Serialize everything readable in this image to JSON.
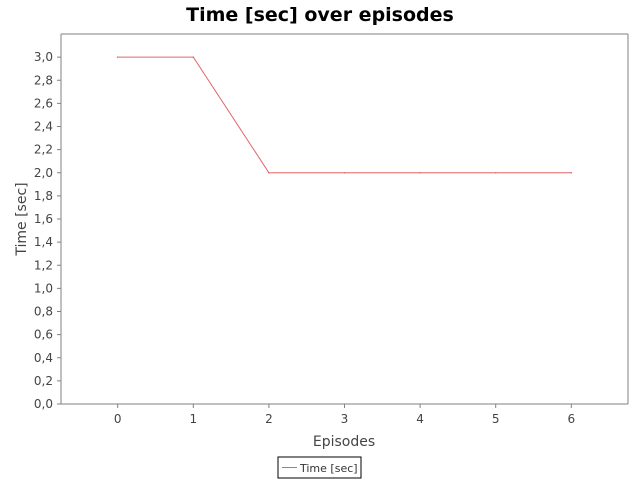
{
  "chart_data": {
    "type": "line",
    "title": "Time [sec] over episodes",
    "xlabel": "Episodes",
    "ylabel": "Time [sec]",
    "x": [
      0,
      1,
      2,
      3,
      4,
      5,
      6
    ],
    "x_ticks": [
      0,
      1,
      2,
      3,
      4,
      5,
      6
    ],
    "x_tick_labels": [
      "0",
      "1",
      "2",
      "3",
      "4",
      "5",
      "6"
    ],
    "xlim": [
      -0.75,
      6.75
    ],
    "ylim": [
      0,
      3.2
    ],
    "y_ticks": [
      0,
      0.2,
      0.4,
      0.6,
      0.8,
      1.0,
      1.2,
      1.4,
      1.6,
      1.8,
      2.0,
      2.2,
      2.4,
      2.6,
      2.8,
      3.0
    ],
    "y_tick_labels": [
      "0,0",
      "0,2",
      "0,4",
      "0,6",
      "0,8",
      "1,0",
      "1,2",
      "1,4",
      "1,6",
      "1,8",
      "2,0",
      "2,2",
      "2,4",
      "2,6",
      "2,8",
      "3,0"
    ],
    "grid": false,
    "legend_position": "bottom-center",
    "series": [
      {
        "name": "Time [sec]",
        "color": "#e06666",
        "values": [
          3.0,
          3.0,
          2.0,
          2.0,
          2.0,
          2.0,
          2.0
        ]
      }
    ]
  }
}
